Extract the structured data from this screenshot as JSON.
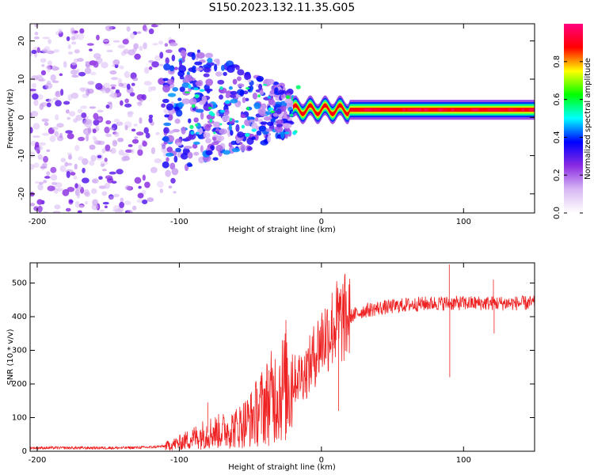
{
  "figure_title": "S150.2023.132.11.35.G05",
  "chart_data": [
    {
      "type": "heatmap",
      "panel": "spectrogram",
      "xlabel": "Height of straight line (km)",
      "ylabel": "Frequency (Hz)",
      "xlim": [
        -205,
        150
      ],
      "ylim": [
        -25,
        24.5
      ],
      "x_ticks": [
        -200,
        -100,
        0,
        100
      ],
      "y_ticks": [
        -20,
        -10,
        0,
        10,
        20
      ],
      "colorbar": {
        "label": "Normalized spectral amplitude",
        "range": [
          0,
          1
        ],
        "ticks": [
          0.0,
          0.2,
          0.4,
          0.6,
          0.8
        ],
        "tick_labels": [
          "0.0",
          "0.2",
          "0.4",
          "0.6",
          "0.8"
        ],
        "colormap": [
          "#ffffff",
          "#d8b8f4",
          "#8a2be2",
          "#0000ff",
          "#00ffff",
          "#00ff00",
          "#ffff00",
          "#ff0000",
          "#ff0080"
        ]
      },
      "line_frequency_hz": 2,
      "regions": [
        {
          "x_range": [
            -205,
            -110
          ],
          "description": "noise",
          "amplitude": 0.2
        },
        {
          "x_range": [
            -110,
            -20
          ],
          "description": "transition",
          "amplitude": 0.35
        },
        {
          "x_range": [
            -20,
            150
          ],
          "description": "signal",
          "amplitude": 0.95
        }
      ]
    },
    {
      "type": "line",
      "panel": "snr",
      "xlabel": "Height of straight line (km)",
      "ylabel": "SNR (10 * v/v)",
      "xlim": [
        -205,
        150
      ],
      "ylim": [
        0,
        560
      ],
      "x_ticks": [
        -200,
        -100,
        0,
        100
      ],
      "y_ticks": [
        0,
        100,
        200,
        300,
        400,
        500
      ],
      "line_color": "#ee2222",
      "x": [
        -205,
        -180,
        -160,
        -140,
        -120,
        -110,
        -100,
        -90,
        -80,
        -70,
        -60,
        -50,
        -40,
        -30,
        -20,
        -10,
        0,
        10,
        20,
        30,
        40,
        50,
        60,
        70,
        80,
        90,
        100,
        110,
        120,
        130,
        150
      ],
      "values": [
        10,
        10,
        10,
        10,
        12,
        15,
        25,
        40,
        55,
        60,
        70,
        95,
        140,
        180,
        210,
        240,
        330,
        380,
        400,
        418,
        425,
        430,
        435,
        438,
        440,
        440,
        440,
        440,
        440,
        440,
        440
      ],
      "spikes": [
        {
          "x": 90,
          "value": 555
        },
        {
          "x": 90.3,
          "value": 220
        },
        {
          "x": 121,
          "value": 510
        },
        {
          "x": 121.5,
          "value": 350
        },
        {
          "x": -80,
          "value": 145
        },
        {
          "x": -25,
          "value": 390
        },
        {
          "x": 13,
          "value": 460
        },
        {
          "x": 12,
          "value": 120
        }
      ]
    }
  ]
}
